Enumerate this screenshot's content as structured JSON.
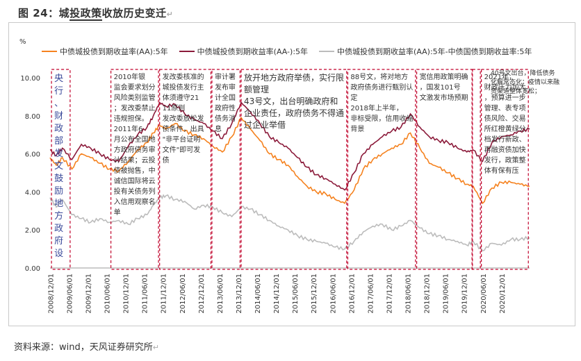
{
  "title": "图 24：城投政策收放历史变迁",
  "title_prefix": "图 24：城",
  "title_underlined": "投政策",
  "title_suffix": "收放历史变迁",
  "source": "资料来源：wind，天风证券研究所",
  "chart_data": {
    "type": "line",
    "unit": "%",
    "ylim": [
      0,
      10
    ],
    "yticks": [
      "0.00",
      "2.00",
      "4.00",
      "6.00",
      "8.00",
      "10.00"
    ],
    "xticks": [
      "2008/12/01",
      "2009/06/01",
      "2009/12/01",
      "2010/06/01",
      "2010/12/01",
      "2011/06/01",
      "2011/12/01",
      "2012/06/01",
      "2012/12/01",
      "2013/06/01",
      "2013/12/01",
      "2014/06/01",
      "2014/12/01",
      "2015/06/01",
      "2015/12/01",
      "2016/06/01",
      "2016/12/01",
      "2017/06/01",
      "2017/12/01",
      "2018/06/01",
      "2018/12/01",
      "2019/06/01",
      "2019/12/01",
      "2020/06/01",
      "2020/12/01"
    ],
    "x_range": [
      "2008-11-01",
      "2021-08-01"
    ],
    "series": [
      {
        "name": "中债城投债到期收益率(AA):5年",
        "color": "#f5821f",
        "points": [
          [
            "2008-11-01",
            5.8
          ],
          [
            "2009-01-01",
            5.4
          ],
          [
            "2009-03-01",
            5.8
          ],
          [
            "2009-06-01",
            5.2
          ],
          [
            "2009-09-01",
            6.0
          ],
          [
            "2009-12-01",
            5.8
          ],
          [
            "2010-03-01",
            5.5
          ],
          [
            "2010-06-01",
            5.2
          ],
          [
            "2010-09-01",
            5.1
          ],
          [
            "2010-12-01",
            5.6
          ],
          [
            "2011-03-01",
            6.2
          ],
          [
            "2011-06-01",
            6.6
          ],
          [
            "2011-08-01",
            7.1
          ],
          [
            "2011-10-01",
            7.5
          ],
          [
            "2011-12-01",
            7.3
          ],
          [
            "2012-03-01",
            7.6
          ],
          [
            "2012-06-01",
            7.2
          ],
          [
            "2012-09-01",
            7.0
          ],
          [
            "2012-12-01",
            6.8
          ],
          [
            "2013-03-01",
            6.4
          ],
          [
            "2013-06-01",
            6.1
          ],
          [
            "2013-09-01",
            6.9
          ],
          [
            "2013-12-01",
            7.9
          ],
          [
            "2014-03-01",
            7.3
          ],
          [
            "2014-06-01",
            6.7
          ],
          [
            "2014-09-01",
            6.0
          ],
          [
            "2014-12-01",
            5.7
          ],
          [
            "2015-03-01",
            5.4
          ],
          [
            "2015-06-01",
            4.8
          ],
          [
            "2015-09-01",
            4.3
          ],
          [
            "2015-12-01",
            4.0
          ],
          [
            "2016-03-01",
            3.9
          ],
          [
            "2016-06-01",
            3.6
          ],
          [
            "2016-09-01",
            3.4
          ],
          [
            "2016-12-01",
            4.1
          ],
          [
            "2017-03-01",
            5.2
          ],
          [
            "2017-06-01",
            5.7
          ],
          [
            "2017-09-01",
            6.0
          ],
          [
            "2017-12-01",
            6.3
          ],
          [
            "2018-03-01",
            6.5
          ],
          [
            "2018-06-01",
            7.1
          ],
          [
            "2018-09-01",
            6.3
          ],
          [
            "2018-12-01",
            5.5
          ],
          [
            "2019-03-01",
            5.3
          ],
          [
            "2019-06-01",
            5.0
          ],
          [
            "2019-09-01",
            4.7
          ],
          [
            "2019-12-01",
            4.4
          ],
          [
            "2020-02-01",
            4.3
          ],
          [
            "2020-05-01",
            3.4
          ],
          [
            "2020-08-01",
            4.2
          ],
          [
            "2020-11-01",
            4.5
          ],
          [
            "2021-02-01",
            4.5
          ],
          [
            "2021-05-01",
            4.4
          ],
          [
            "2021-08-01",
            4.3
          ]
        ]
      },
      {
        "name": "中债城投债到期收益率(AA-):5年",
        "color": "#8b1a3a",
        "points": [
          [
            "2008-11-01",
            6.2
          ],
          [
            "2009-01-01",
            5.9
          ],
          [
            "2009-03-01",
            6.3
          ],
          [
            "2009-06-01",
            5.7
          ],
          [
            "2009-09-01",
            6.5
          ],
          [
            "2009-12-01",
            6.3
          ],
          [
            "2010-03-01",
            6.0
          ],
          [
            "2010-06-01",
            5.7
          ],
          [
            "2010-09-01",
            5.6
          ],
          [
            "2010-12-01",
            6.4
          ],
          [
            "2011-03-01",
            7.0
          ],
          [
            "2011-06-01",
            7.4
          ],
          [
            "2011-08-01",
            8.0
          ],
          [
            "2011-10-01",
            8.7
          ],
          [
            "2011-12-01",
            8.5
          ],
          [
            "2012-03-01",
            8.6
          ],
          [
            "2012-06-01",
            8.1
          ],
          [
            "2012-09-01",
            7.8
          ],
          [
            "2012-12-01",
            7.6
          ],
          [
            "2013-03-01",
            7.2
          ],
          [
            "2013-06-01",
            6.8
          ],
          [
            "2013-09-01",
            7.6
          ],
          [
            "2013-12-01",
            8.7
          ],
          [
            "2014-03-01",
            8.2
          ],
          [
            "2014-06-01",
            7.6
          ],
          [
            "2014-09-01",
            6.9
          ],
          [
            "2014-12-01",
            6.6
          ],
          [
            "2015-03-01",
            6.3
          ],
          [
            "2015-06-01",
            5.8
          ],
          [
            "2015-09-01",
            5.3
          ],
          [
            "2015-12-01",
            4.9
          ],
          [
            "2016-03-01",
            4.7
          ],
          [
            "2016-06-01",
            4.4
          ],
          [
            "2016-09-01",
            4.1
          ],
          [
            "2016-12-01",
            5.0
          ],
          [
            "2017-03-01",
            6.0
          ],
          [
            "2017-06-01",
            6.5
          ],
          [
            "2017-09-01",
            6.9
          ],
          [
            "2017-12-01",
            7.2
          ],
          [
            "2018-03-01",
            7.4
          ],
          [
            "2018-06-01",
            8.1
          ],
          [
            "2018-09-01",
            7.4
          ],
          [
            "2018-12-01",
            6.9
          ],
          [
            "2019-03-01",
            6.7
          ],
          [
            "2019-06-01",
            6.6
          ],
          [
            "2019-09-01",
            6.3
          ],
          [
            "2019-12-01",
            6.1
          ],
          [
            "2020-02-01",
            6.2
          ],
          [
            "2020-05-01",
            5.6
          ],
          [
            "2020-08-01",
            6.6
          ],
          [
            "2020-11-01",
            6.9
          ],
          [
            "2021-02-01",
            7.0
          ],
          [
            "2021-05-01",
            7.2
          ],
          [
            "2021-08-01",
            7.3
          ]
        ]
      },
      {
        "name": "中债城投债到期收益率(AA):5年-中债国债到期收益率:5年",
        "color": "#bcbcbc",
        "points": [
          [
            "2008-11-01",
            3.7
          ],
          [
            "2009-01-01",
            3.2
          ],
          [
            "2009-03-01",
            3.6
          ],
          [
            "2009-06-01",
            2.8
          ],
          [
            "2009-09-01",
            2.6
          ],
          [
            "2009-12-01",
            2.4
          ],
          [
            "2010-03-01",
            2.6
          ],
          [
            "2010-06-01",
            2.4
          ],
          [
            "2010-09-01",
            2.5
          ],
          [
            "2010-12-01",
            2.3
          ],
          [
            "2011-03-01",
            2.6
          ],
          [
            "2011-06-01",
            2.8
          ],
          [
            "2011-08-01",
            3.3
          ],
          [
            "2011-10-01",
            3.7
          ],
          [
            "2011-12-01",
            3.8
          ],
          [
            "2012-03-01",
            3.6
          ],
          [
            "2012-06-01",
            3.5
          ],
          [
            "2012-09-01",
            3.1
          ],
          [
            "2012-12-01",
            3.3
          ],
          [
            "2013-03-01",
            3.2
          ],
          [
            "2013-06-01",
            2.9
          ],
          [
            "2013-09-01",
            2.7
          ],
          [
            "2013-12-01",
            3.2
          ],
          [
            "2014-03-01",
            3.1
          ],
          [
            "2014-06-01",
            2.8
          ],
          [
            "2014-09-01",
            2.5
          ],
          [
            "2014-12-01",
            2.2
          ],
          [
            "2015-03-01",
            2.0
          ],
          [
            "2015-06-01",
            1.7
          ],
          [
            "2015-09-01",
            1.5
          ],
          [
            "2015-12-01",
            1.4
          ],
          [
            "2016-03-01",
            1.3
          ],
          [
            "2016-06-01",
            1.1
          ],
          [
            "2016-09-01",
            1.0
          ],
          [
            "2016-12-01",
            1.4
          ],
          [
            "2017-03-01",
            1.9
          ],
          [
            "2017-06-01",
            2.2
          ],
          [
            "2017-09-01",
            2.3
          ],
          [
            "2017-12-01",
            2.0
          ],
          [
            "2018-03-01",
            2.2
          ],
          [
            "2018-06-01",
            2.5
          ],
          [
            "2018-09-01",
            2.1
          ],
          [
            "2018-12-01",
            1.8
          ],
          [
            "2019-03-01",
            1.7
          ],
          [
            "2019-06-01",
            1.5
          ],
          [
            "2019-09-01",
            1.4
          ],
          [
            "2019-12-01",
            1.2
          ],
          [
            "2020-02-01",
            1.4
          ],
          [
            "2020-05-01",
            0.9
          ],
          [
            "2020-08-01",
            1.3
          ],
          [
            "2020-11-01",
            1.2
          ],
          [
            "2021-02-01",
            1.5
          ],
          [
            "2021-05-01",
            1.5
          ],
          [
            "2021-08-01",
            1.6
          ]
        ]
      }
    ],
    "annotation_boxes": [
      {
        "start": "2008-11-15",
        "end": "2009-05-15",
        "text": "央行、财政部发文鼓励地方政府设立融资平台",
        "style": "vertical",
        "color": "#3a4a9a",
        "font": 13
      },
      {
        "start": "2010-06-15",
        "end": "2011-09-20",
        "text": "2010年银监会要求划分风险类别监管；发改委禁止违规担保。\n2011年6月公布全国地方政府债务审计结果；云投债被抛售，中诚信国际将云投有关债务列入信用观察名单",
        "color": "#333",
        "font": 10
      },
      {
        "start": "2011-10-01",
        "end": "2013-02-10",
        "text": "发改委核准的城投债发行主体须遵守2111原则\n发改委放松发债条件，出具\"非平台证明文件\"即可发债",
        "color": "#333",
        "font": 10
      },
      {
        "start": "2013-02-20",
        "end": "2013-11-20",
        "text": "审计署发布审计全国政府性债务消息",
        "color": "#333",
        "font": 10,
        "style": "vertical"
      },
      {
        "start": "2013-12-01",
        "end": "2016-09-20",
        "text": "放开地方政府举债，实行限额管理\n43号文，出台明确政府和企业责任，政府债务不得通过企业举借",
        "color": "#333",
        "font": 12
      },
      {
        "start": "2016-10-01",
        "end": "2018-07-20",
        "text": "88号文，将对地方政府债务进行甄别认定\n2018年上半年，非标受限，信用收缩背景",
        "color": "#333",
        "font": 10
      },
      {
        "start": "2018-08-01",
        "end": "2020-01-20",
        "text": "宽信用政策明确，国发101号文激发市场预期",
        "color": "#333",
        "font": 10
      },
      {
        "start": "2020-01-25",
        "end": "2020-04-10",
        "text": "",
        "color": "#333",
        "font": 10
      },
      {
        "start": "2020-04-20",
        "end": "2021-07-20",
        "text": "2021年，财政压力加大，预算进一步管理、表专项债风险、交易所红橙黄绿分档发行新政、再融资债加快发行，政策整体有保有压",
        "color": "#333",
        "font": 10
      }
    ],
    "free_note": "40号文出台，降低债务化解常态化；疫情以来融资渠道整体宽松；"
  }
}
